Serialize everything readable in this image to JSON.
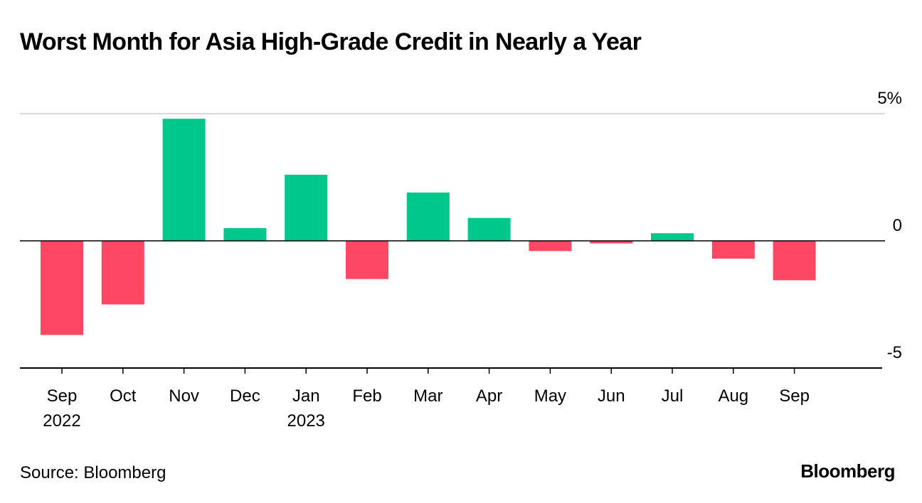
{
  "chart_data": {
    "type": "bar",
    "title": "Worst Month for Asia High-Grade Credit in Nearly a Year",
    "categories": [
      "Sep",
      "Oct",
      "Nov",
      "Dec",
      "Jan",
      "Feb",
      "Mar",
      "Apr",
      "May",
      "Jun",
      "Jul",
      "Aug",
      "Sep"
    ],
    "year_labels": [
      "2022",
      "",
      "",
      "",
      "2023",
      "",
      "",
      "",
      "",
      "",
      "",
      "",
      ""
    ],
    "values": [
      -3.7,
      -2.5,
      4.8,
      0.5,
      2.6,
      -1.5,
      1.9,
      0.9,
      -0.4,
      -0.1,
      0.3,
      -0.7,
      -1.55
    ],
    "ylim": [
      -5,
      5
    ],
    "yticks": [
      5,
      0,
      -5
    ],
    "ytick_labels": [
      "5%",
      "0",
      "-5"
    ],
    "xlabel": "",
    "ylabel": "",
    "grid": true,
    "colors": {
      "positive": "#00c88c",
      "negative": "#ff4663",
      "grid": "#d9d9d9",
      "axis": "#000000"
    }
  },
  "footer": {
    "source": "Source: Bloomberg",
    "brand": "Bloomberg"
  }
}
